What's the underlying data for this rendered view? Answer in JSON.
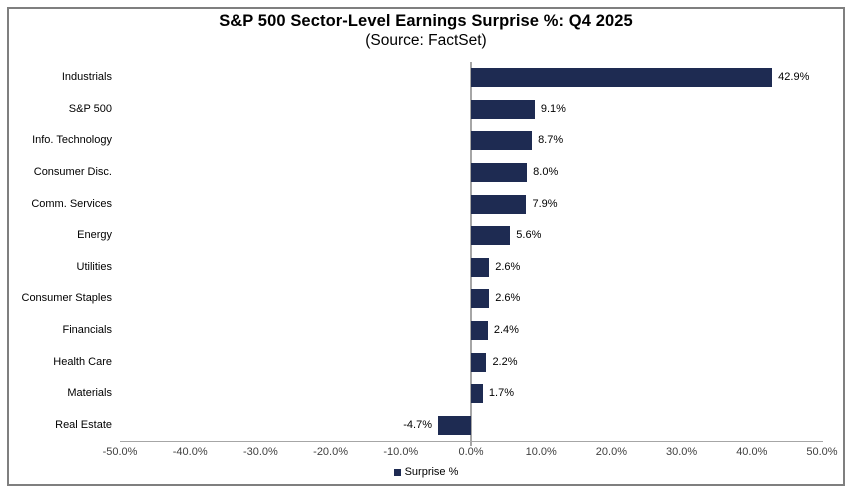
{
  "figure": {
    "title": "S&P 500 Sector-Level Earnings Surprise %: Q4 2025",
    "subtitle": "(Source: FactSet)"
  },
  "chart_data": {
    "type": "bar",
    "orientation": "horizontal",
    "title": "S&P 500 Sector-Level Earnings Surprise %: Q4 2025",
    "subtitle": "(Source: FactSet)",
    "categories": [
      "Industrials",
      "S&P 500",
      "Info. Technology",
      "Consumer Disc.",
      "Comm. Services",
      "Energy",
      "Utilities",
      "Consumer Staples",
      "Financials",
      "Health Care",
      "Materials",
      "Real Estate"
    ],
    "values": [
      42.9,
      9.1,
      8.7,
      8.0,
      7.9,
      5.6,
      2.6,
      2.6,
      2.4,
      2.2,
      1.7,
      -4.7
    ],
    "value_labels": [
      "42.9%",
      "9.1%",
      "8.7%",
      "8.0%",
      "7.9%",
      "5.6%",
      "2.6%",
      "2.6%",
      "2.4%",
      "2.2%",
      "1.7%",
      "-4.7%"
    ],
    "series_name": "Surprise %",
    "x_tick_labels": [
      "-50.0%",
      "-40.0%",
      "-30.0%",
      "-20.0%",
      "-10.0%",
      "0.0%",
      "10.0%",
      "20.0%",
      "30.0%",
      "40.0%",
      "50.0%"
    ],
    "x_tick_values": [
      -50,
      -40,
      -30,
      -20,
      -10,
      0,
      10,
      20,
      30,
      40,
      50
    ],
    "xlim": [
      -50,
      50
    ],
    "grid": false,
    "legend": {
      "label": "Surprise %",
      "position": "bottom-center"
    },
    "bar_color": "#1e2b52",
    "axis_color": "#a6a6a6",
    "frame_color": "#7f7f7f"
  }
}
